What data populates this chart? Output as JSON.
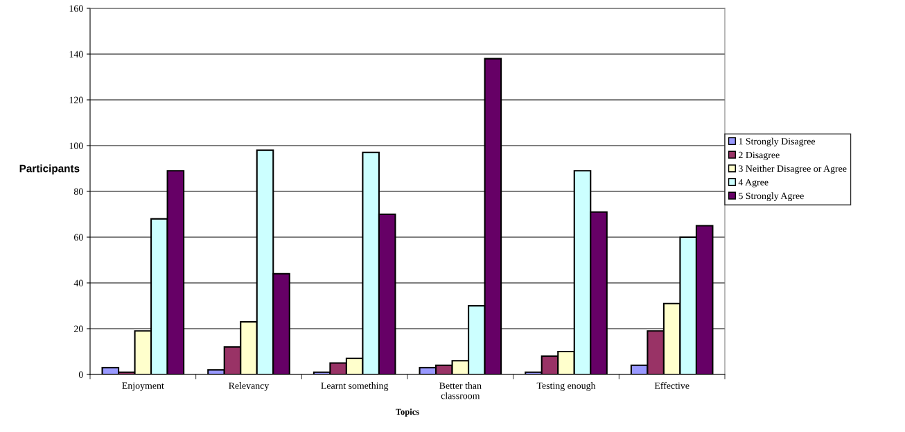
{
  "chart_data": {
    "type": "bar",
    "xlabel": "Topics",
    "ylabel": "Participants",
    "categories": [
      "Enjoyment",
      "Relevancy",
      "Learnt something",
      "Better than\nclassroom",
      "Testing enough",
      "Effective"
    ],
    "series": [
      {
        "name": "1 Strongly Disagree",
        "color": "#9999ff",
        "values": [
          3,
          2,
          1,
          3,
          1,
          4
        ]
      },
      {
        "name": "2 Disagree",
        "color": "#993366",
        "values": [
          1,
          12,
          5,
          4,
          8,
          19
        ]
      },
      {
        "name": "3 Neither Disagree or Agree",
        "color": "#ffffcc",
        "values": [
          19,
          23,
          7,
          6,
          10,
          31
        ]
      },
      {
        "name": "4 Agree",
        "color": "#ccffff",
        "values": [
          68,
          98,
          97,
          30,
          89,
          60
        ]
      },
      {
        "name": "5 Strongly Agree",
        "color": "#660066",
        "values": [
          89,
          44,
          70,
          138,
          71,
          65
        ]
      }
    ],
    "ylim": [
      0,
      160
    ],
    "yticks": [
      0,
      20,
      40,
      60,
      80,
      100,
      120,
      140,
      160
    ],
    "grid": "y",
    "legend": "right"
  }
}
